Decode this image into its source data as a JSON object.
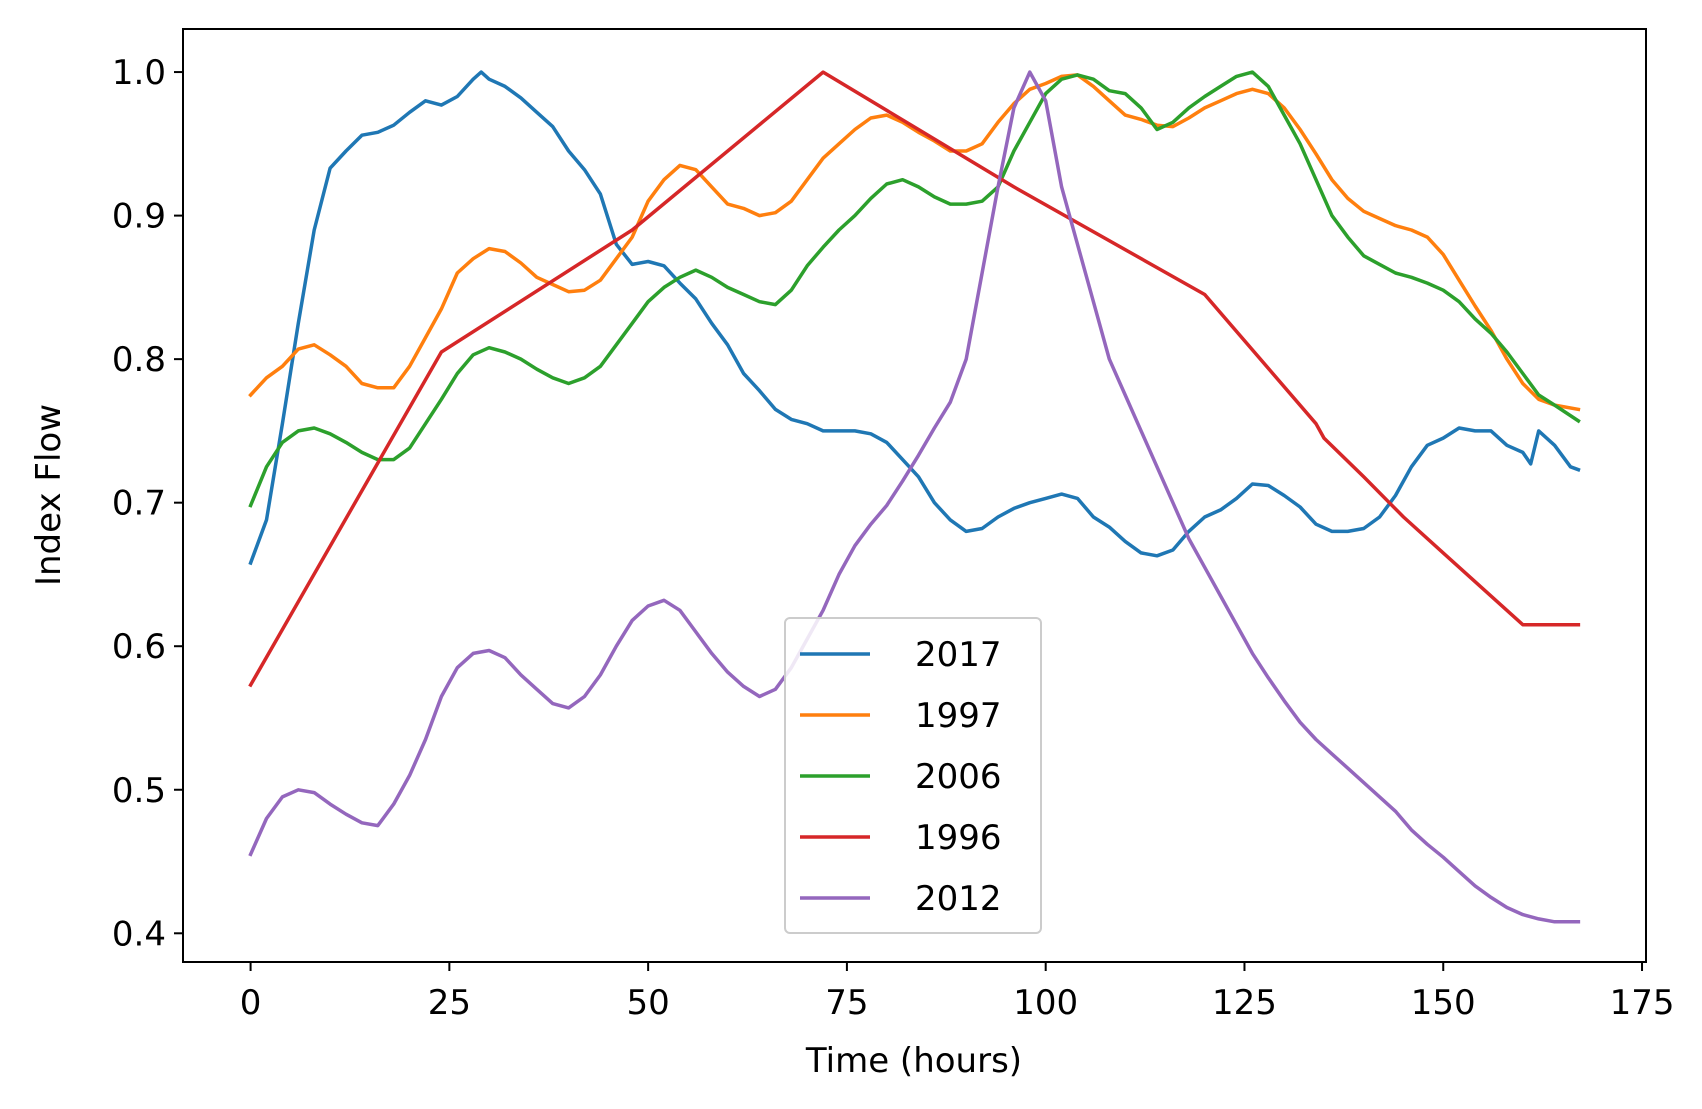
{
  "chart_data": {
    "type": "line",
    "title": "",
    "xlabel": "Time (hours)",
    "ylabel": "Index Flow",
    "xlim": [
      -8.5,
      175.5
    ],
    "ylim": [
      0.38,
      1.03
    ],
    "x_ticks": [
      0,
      25,
      50,
      75,
      100,
      125,
      150,
      175
    ],
    "y_ticks": [
      0.4,
      0.5,
      0.6,
      0.7,
      0.8,
      0.9,
      1.0
    ],
    "x_tick_labels": [
      "0",
      "25",
      "50",
      "75",
      "100",
      "125",
      "150",
      "175"
    ],
    "y_tick_labels": [
      "0.4",
      "0.5",
      "0.6",
      "0.7",
      "0.8",
      "0.9",
      "1.0"
    ],
    "grid": false,
    "legend_position": "lower center",
    "series": [
      {
        "name": "2017",
        "color": "#1f77b4",
        "x": [
          0,
          2,
          4,
          6,
          8,
          10,
          12,
          14,
          16,
          18,
          20,
          22,
          24,
          26,
          28,
          29,
          30,
          32,
          34,
          36,
          38,
          40,
          42,
          44,
          46,
          48,
          50,
          52,
          54,
          56,
          58,
          60,
          62,
          64,
          66,
          68,
          70,
          72,
          74,
          76,
          78,
          80,
          82,
          84,
          86,
          88,
          90,
          92,
          94,
          96,
          98,
          100,
          102,
          104,
          106,
          108,
          110,
          112,
          114,
          116,
          118,
          120,
          122,
          124,
          126,
          128,
          130,
          132,
          134,
          136,
          138,
          140,
          142,
          144,
          146,
          148,
          150,
          152,
          154,
          156,
          158,
          160,
          161,
          162,
          164,
          166,
          167
        ],
        "y": [
          0.658,
          0.688,
          0.755,
          0.825,
          0.89,
          0.933,
          0.945,
          0.956,
          0.958,
          0.963,
          0.972,
          0.98,
          0.977,
          0.983,
          0.995,
          1.0,
          0.995,
          0.99,
          0.982,
          0.972,
          0.962,
          0.945,
          0.932,
          0.915,
          0.88,
          0.866,
          0.868,
          0.865,
          0.853,
          0.842,
          0.825,
          0.81,
          0.79,
          0.778,
          0.765,
          0.758,
          0.755,
          0.75,
          0.75,
          0.75,
          0.748,
          0.742,
          0.73,
          0.718,
          0.7,
          0.688,
          0.68,
          0.682,
          0.69,
          0.696,
          0.7,
          0.703,
          0.706,
          0.703,
          0.69,
          0.683,
          0.673,
          0.665,
          0.663,
          0.667,
          0.68,
          0.69,
          0.695,
          0.703,
          0.713,
          0.712,
          0.705,
          0.697,
          0.685,
          0.68,
          0.68,
          0.682,
          0.69,
          0.705,
          0.725,
          0.74,
          0.745,
          0.752,
          0.75,
          0.75,
          0.74,
          0.735,
          0.727,
          0.75,
          0.74,
          0.725,
          0.723
        ]
      },
      {
        "name": "1997",
        "color": "#ff7f0e",
        "x": [
          0,
          2,
          4,
          6,
          8,
          10,
          12,
          14,
          16,
          18,
          20,
          22,
          24,
          26,
          28,
          30,
          32,
          34,
          36,
          38,
          40,
          42,
          44,
          46,
          48,
          50,
          52,
          54,
          56,
          58,
          60,
          62,
          64,
          66,
          68,
          70,
          72,
          74,
          76,
          78,
          80,
          82,
          84,
          86,
          88,
          90,
          92,
          94,
          96,
          98,
          100,
          102,
          104,
          106,
          108,
          110,
          112,
          114,
          116,
          118,
          120,
          122,
          124,
          126,
          128,
          130,
          132,
          134,
          136,
          138,
          140,
          142,
          144,
          146,
          148,
          150,
          152,
          154,
          156,
          158,
          160,
          162,
          164,
          167
        ],
        "y": [
          0.775,
          0.787,
          0.795,
          0.807,
          0.81,
          0.803,
          0.795,
          0.783,
          0.78,
          0.78,
          0.795,
          0.815,
          0.835,
          0.86,
          0.87,
          0.877,
          0.875,
          0.867,
          0.857,
          0.852,
          0.847,
          0.848,
          0.855,
          0.87,
          0.885,
          0.91,
          0.925,
          0.935,
          0.932,
          0.92,
          0.908,
          0.905,
          0.9,
          0.902,
          0.91,
          0.925,
          0.94,
          0.95,
          0.96,
          0.968,
          0.97,
          0.965,
          0.958,
          0.952,
          0.945,
          0.945,
          0.95,
          0.965,
          0.978,
          0.988,
          0.992,
          0.997,
          0.998,
          0.99,
          0.98,
          0.97,
          0.967,
          0.963,
          0.962,
          0.968,
          0.975,
          0.98,
          0.985,
          0.988,
          0.985,
          0.975,
          0.96,
          0.943,
          0.925,
          0.912,
          0.903,
          0.898,
          0.893,
          0.89,
          0.885,
          0.873,
          0.855,
          0.837,
          0.82,
          0.8,
          0.783,
          0.772,
          0.768,
          0.765
        ]
      },
      {
        "name": "2006",
        "color": "#2ca02c",
        "x": [
          0,
          2,
          4,
          6,
          8,
          10,
          12,
          14,
          16,
          18,
          20,
          22,
          24,
          26,
          28,
          30,
          32,
          34,
          36,
          38,
          40,
          42,
          44,
          46,
          48,
          50,
          52,
          54,
          56,
          58,
          60,
          62,
          64,
          66,
          68,
          70,
          72,
          74,
          76,
          78,
          80,
          82,
          84,
          86,
          88,
          90,
          92,
          94,
          96,
          98,
          100,
          102,
          104,
          106,
          108,
          110,
          112,
          114,
          116,
          118,
          120,
          122,
          124,
          126,
          128,
          130,
          132,
          134,
          136,
          138,
          140,
          142,
          144,
          146,
          148,
          150,
          152,
          154,
          156,
          158,
          160,
          162,
          164,
          167
        ],
        "y": [
          0.698,
          0.725,
          0.742,
          0.75,
          0.752,
          0.748,
          0.742,
          0.735,
          0.73,
          0.73,
          0.738,
          0.755,
          0.772,
          0.79,
          0.803,
          0.808,
          0.805,
          0.8,
          0.793,
          0.787,
          0.783,
          0.787,
          0.795,
          0.81,
          0.825,
          0.84,
          0.85,
          0.857,
          0.862,
          0.857,
          0.85,
          0.845,
          0.84,
          0.838,
          0.848,
          0.865,
          0.878,
          0.89,
          0.9,
          0.912,
          0.922,
          0.925,
          0.92,
          0.913,
          0.908,
          0.908,
          0.91,
          0.92,
          0.945,
          0.965,
          0.985,
          0.995,
          0.998,
          0.995,
          0.987,
          0.985,
          0.975,
          0.96,
          0.965,
          0.975,
          0.983,
          0.99,
          0.997,
          1.0,
          0.99,
          0.97,
          0.95,
          0.925,
          0.9,
          0.885,
          0.872,
          0.866,
          0.86,
          0.857,
          0.853,
          0.848,
          0.84,
          0.828,
          0.818,
          0.805,
          0.79,
          0.775,
          0.768,
          0.757
        ]
      },
      {
        "name": "1996",
        "color": "#d62728",
        "x": [
          0,
          24,
          48,
          72,
          96,
          120,
          134,
          135,
          140,
          145,
          150,
          155,
          160,
          167
        ],
        "y": [
          0.573,
          0.805,
          0.89,
          1.0,
          0.92,
          0.845,
          0.755,
          0.745,
          0.718,
          0.69,
          0.665,
          0.64,
          0.615,
          0.615
        ]
      },
      {
        "name": "2012",
        "color": "#9467bd",
        "x": [
          0,
          2,
          4,
          6,
          8,
          10,
          12,
          14,
          16,
          18,
          20,
          22,
          24,
          26,
          28,
          30,
          32,
          34,
          36,
          38,
          40,
          42,
          44,
          46,
          48,
          50,
          52,
          54,
          56,
          58,
          60,
          62,
          64,
          66,
          68,
          70,
          72,
          74,
          76,
          78,
          80,
          82,
          84,
          86,
          88,
          90,
          92,
          94,
          96,
          98,
          100,
          102,
          104,
          106,
          108,
          110,
          112,
          114,
          116,
          118,
          120,
          122,
          124,
          126,
          128,
          130,
          132,
          134,
          136,
          138,
          140,
          142,
          144,
          146,
          148,
          150,
          152,
          154,
          156,
          158,
          160,
          162,
          164,
          167
        ],
        "y": [
          0.455,
          0.48,
          0.495,
          0.5,
          0.498,
          0.49,
          0.483,
          0.477,
          0.475,
          0.49,
          0.51,
          0.535,
          0.565,
          0.585,
          0.595,
          0.597,
          0.592,
          0.58,
          0.57,
          0.56,
          0.557,
          0.565,
          0.58,
          0.6,
          0.618,
          0.628,
          0.632,
          0.625,
          0.61,
          0.595,
          0.582,
          0.572,
          0.565,
          0.57,
          0.585,
          0.605,
          0.625,
          0.65,
          0.67,
          0.685,
          0.698,
          0.715,
          0.733,
          0.752,
          0.77,
          0.8,
          0.86,
          0.92,
          0.975,
          1.0,
          0.98,
          0.92,
          0.88,
          0.84,
          0.8,
          0.775,
          0.75,
          0.725,
          0.7,
          0.675,
          0.655,
          0.635,
          0.615,
          0.595,
          0.578,
          0.562,
          0.547,
          0.535,
          0.525,
          0.515,
          0.505,
          0.495,
          0.485,
          0.472,
          0.462,
          0.453,
          0.443,
          0.433,
          0.425,
          0.418,
          0.413,
          0.41,
          0.408,
          0.408
        ]
      }
    ]
  }
}
